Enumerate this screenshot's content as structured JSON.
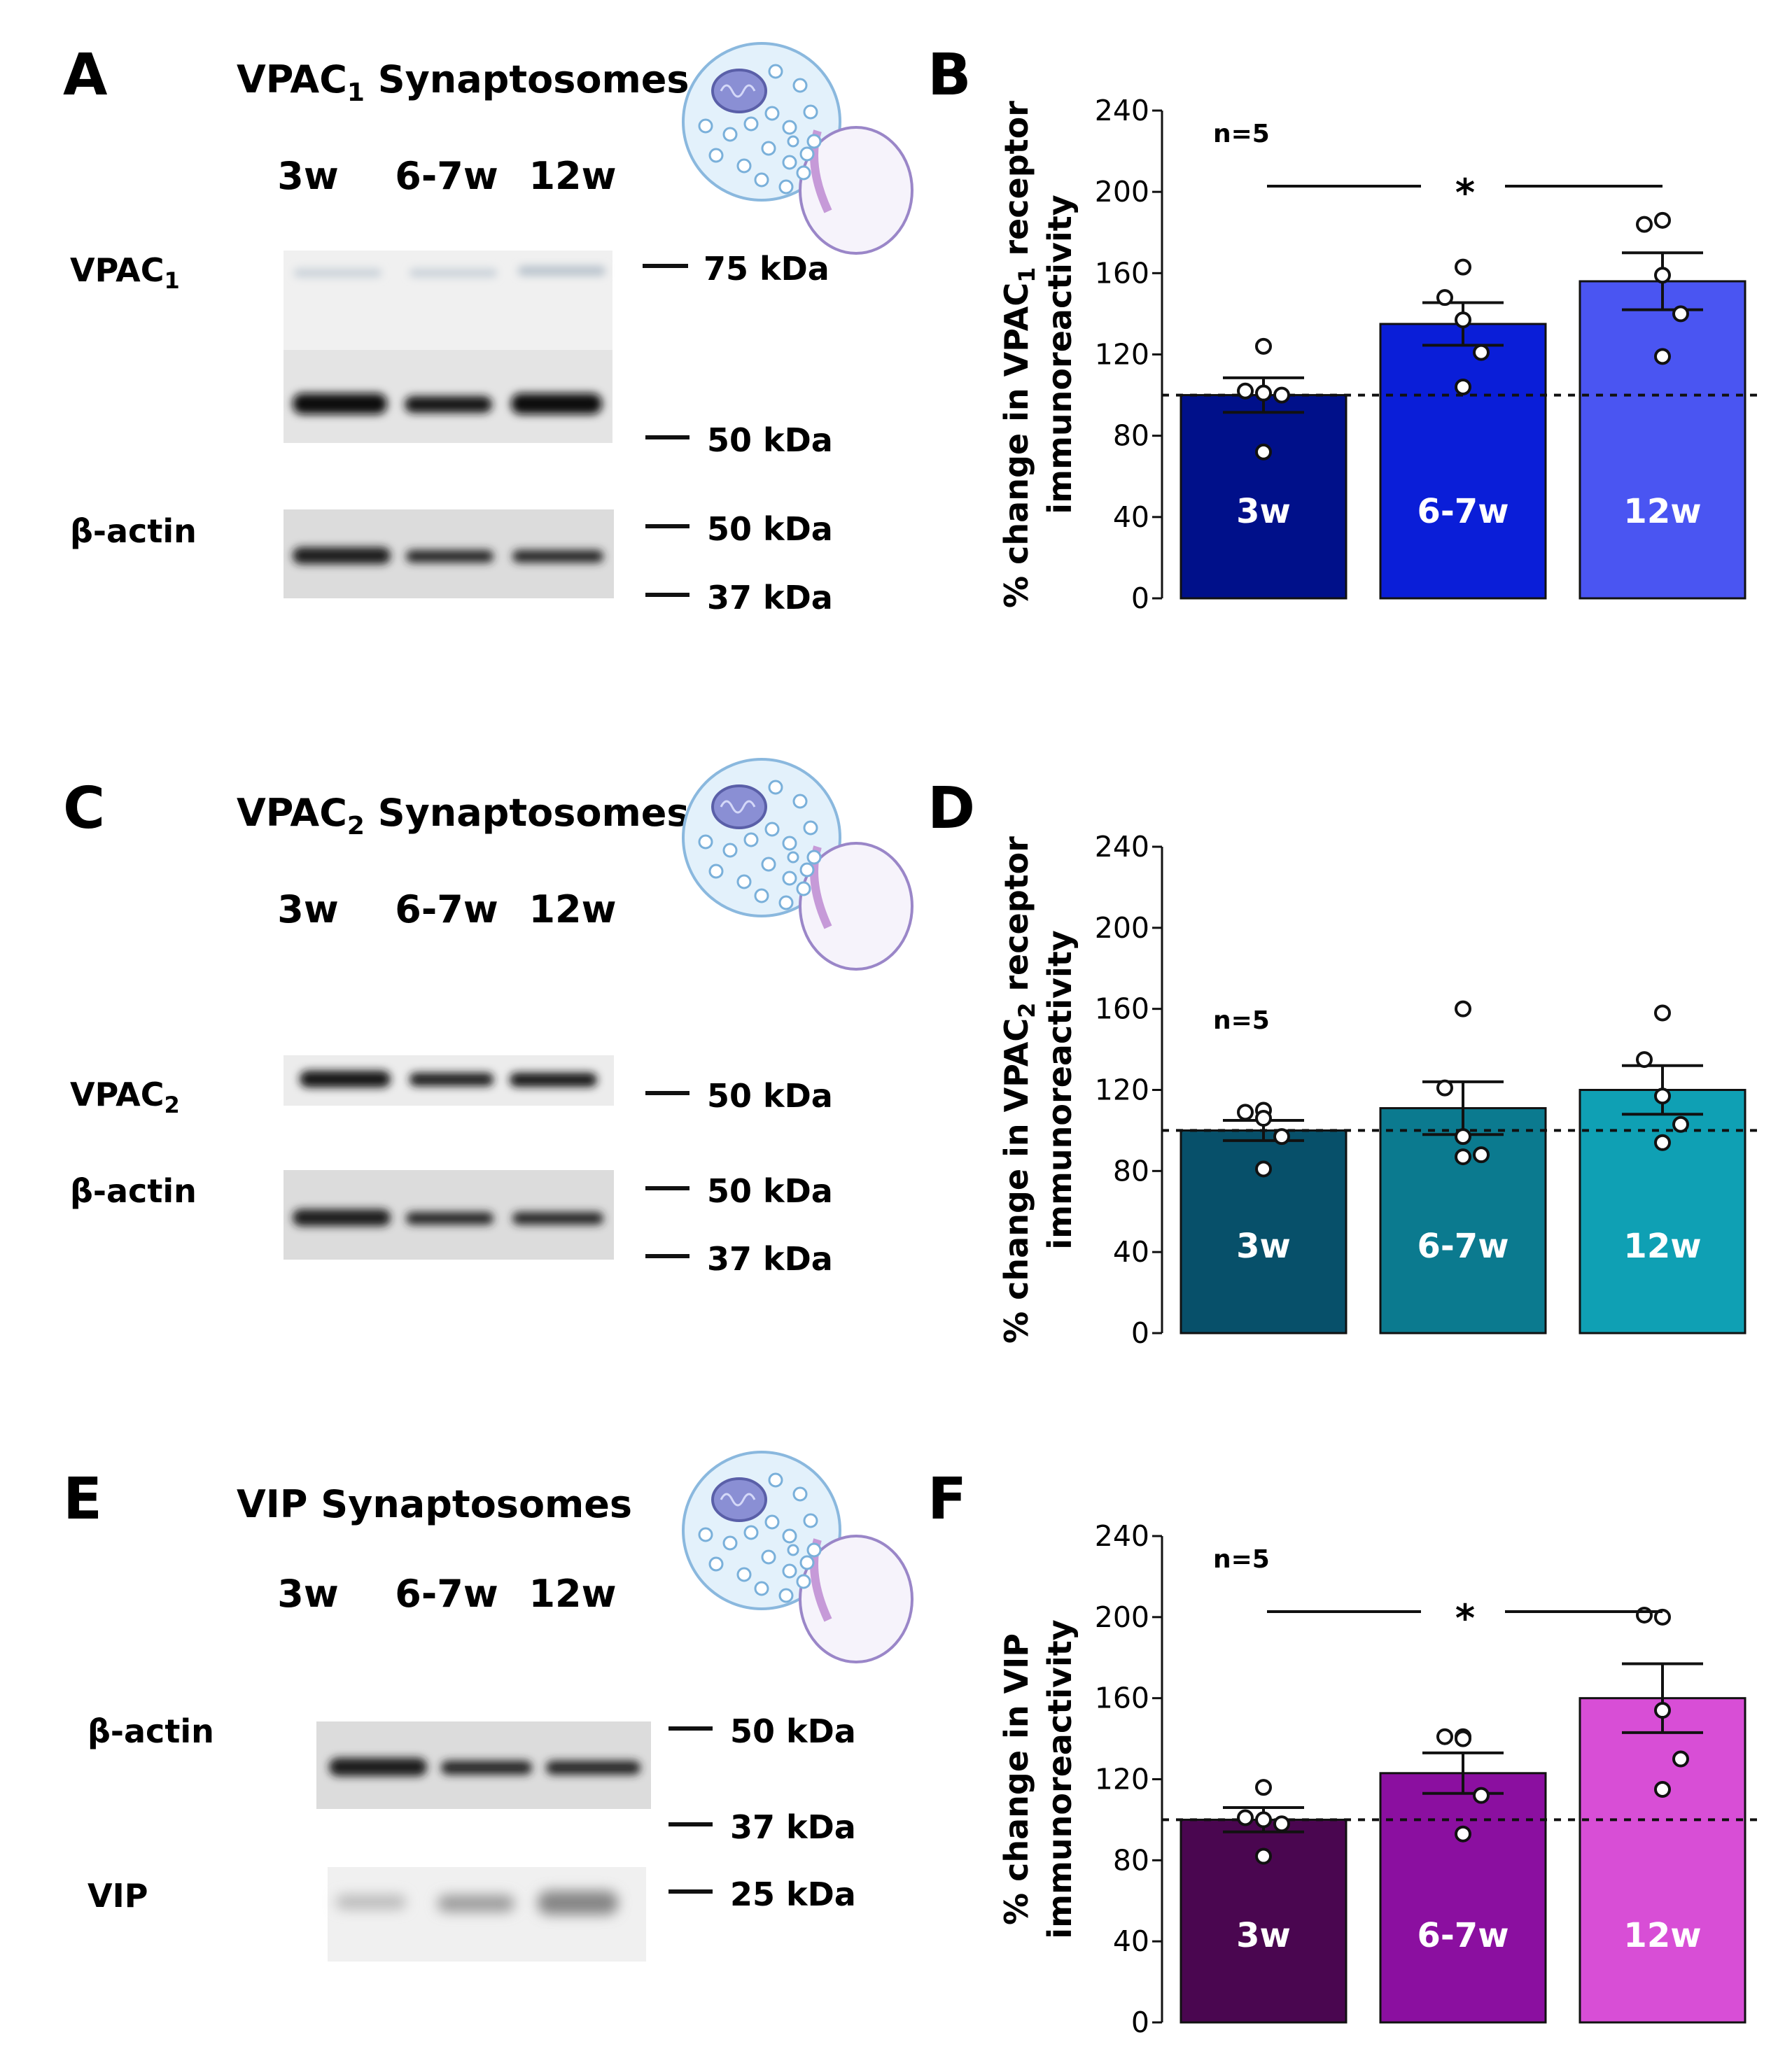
{
  "panels": {
    "A": {
      "letter": "A",
      "title_main": "VPAC",
      "title_sub": "1",
      "title_rest": " Synaptosomes",
      "lanes": [
        "3w",
        "6-7w",
        "12w"
      ],
      "blot_labels": {
        "target_main": "VPAC",
        "target_sub": "1",
        "actin": "β-actin"
      },
      "markers": [
        "75 kDa",
        "50 kDa",
        "50 kDa",
        "37 kDa"
      ]
    },
    "C": {
      "letter": "C",
      "title_main": "VPAC",
      "title_sub": "2",
      "title_rest": " Synaptosomes",
      "lanes": [
        "3w",
        "6-7w",
        "12w"
      ],
      "blot_labels": {
        "target_main": "VPAC",
        "target_sub": "2",
        "actin": "β-actin"
      },
      "markers": [
        "50 kDa",
        "50 kDa",
        "37 kDa"
      ]
    },
    "E": {
      "letter": "E",
      "title": "VIP Synaptosomes",
      "lanes": [
        "3w",
        "6-7w",
        "12w"
      ],
      "blot_labels": {
        "actin": "β-actin",
        "target": "VIP"
      },
      "markers": [
        "50 kDa",
        "37 kDa",
        "25 kDa"
      ]
    }
  },
  "chart_data": [
    {
      "panel": "B",
      "type": "bar",
      "categories": [
        "3w",
        "6-7w",
        "12w"
      ],
      "values": [
        100,
        135,
        156
      ],
      "sem": [
        8.5,
        10.5,
        14
      ],
      "points": [
        [
          124,
          102,
          101,
          100,
          72
        ],
        [
          163,
          148,
          137,
          121,
          104
        ],
        [
          186,
          184,
          159,
          140,
          119
        ]
      ],
      "ylabel_line1_pre": "% change in VPAC",
      "ylabel_line1_sub": "1",
      "ylabel_line1_post": " receptor",
      "ylabel_line2": "immunoreactivity",
      "ylim": [
        0,
        240
      ],
      "yticks": [
        "0",
        "40",
        "80",
        "120",
        "160",
        "200",
        "240"
      ],
      "n_label": "n=5",
      "significance": "*",
      "baseline": 100,
      "colors": [
        "#00108a",
        "#0a1ed8",
        "#4a55f2"
      ]
    },
    {
      "panel": "D",
      "type": "bar",
      "categories": [
        "3w",
        "6-7w",
        "12w"
      ],
      "values": [
        100,
        111,
        120
      ],
      "sem": [
        5,
        13,
        12
      ],
      "points": [
        [
          110,
          109,
          106,
          97,
          81
        ],
        [
          160,
          121,
          97,
          88,
          87
        ],
        [
          158,
          135,
          117,
          103,
          94
        ]
      ],
      "ylabel_line1_pre": "% change in VPAC",
      "ylabel_line1_sub": "2",
      "ylabel_line1_post": " receptor",
      "ylabel_line2": "immunoreactivity",
      "ylim": [
        0,
        240
      ],
      "yticks": [
        "0",
        "40",
        "80",
        "120",
        "160",
        "200",
        "240"
      ],
      "n_label": "n=5",
      "significance": "",
      "baseline": 100,
      "colors": [
        "#07506a",
        "#0b7a8f",
        "#0fa0b4"
      ]
    },
    {
      "panel": "F",
      "type": "bar",
      "categories": [
        "3w",
        "6-7w",
        "12w"
      ],
      "values": [
        100,
        123,
        160
      ],
      "sem": [
        6,
        10,
        17
      ],
      "points": [
        [
          116,
          101,
          100,
          98,
          82
        ],
        [
          141,
          141,
          140,
          112,
          93
        ],
        [
          200,
          201,
          154,
          130,
          115
        ]
      ],
      "ylabel_line1": "% change in VIP",
      "ylabel_line2": "immunoreactivity",
      "ylim": [
        0,
        240
      ],
      "yticks": [
        "0",
        "40",
        "80",
        "120",
        "160",
        "200",
        "240"
      ],
      "n_label": "n=5",
      "significance": "*",
      "baseline": 100,
      "colors": [
        "#4a0650",
        "#8b0fa0",
        "#d84ed6"
      ]
    }
  ],
  "chart_letters": {
    "B": "B",
    "D": "D",
    "F": "F"
  }
}
